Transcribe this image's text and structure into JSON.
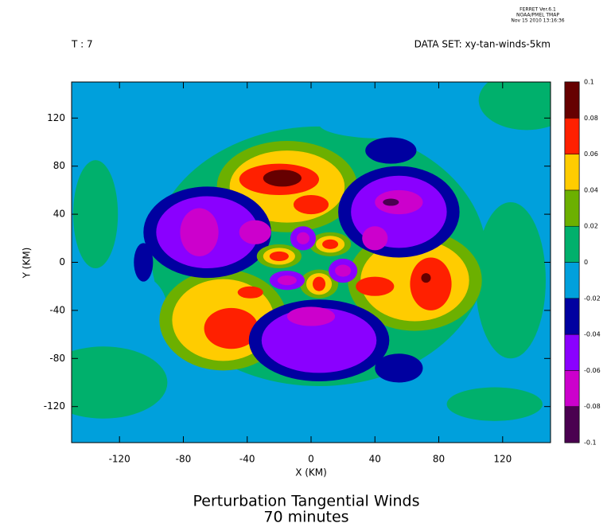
{
  "chart_data": {
    "type": "contour",
    "header": [
      "FERRET Ver.6.1",
      "NOAA/PMEL TMAP",
      "Nov 15 2010 13:16:36"
    ],
    "time_label": "T : 7",
    "dataset_label": "DATA SET: xy-tan-winds-5km",
    "title": "Perturbation Tangential Winds",
    "subtitle": "70 minutes",
    "x_label": "X (KM)",
    "y_label": "Y (KM)",
    "xlim": [
      -150,
      150
    ],
    "ylim": [
      -150,
      150
    ],
    "xticks": [
      -120,
      -80,
      -40,
      0,
      40,
      80,
      120
    ],
    "yticks": [
      -120,
      -80,
      -40,
      0,
      40,
      80,
      120
    ],
    "background_value": -0.01,
    "colorbar": {
      "ticks": [
        -0.1,
        -0.08,
        -0.06,
        -0.04,
        -0.02,
        0,
        0.02,
        0.04,
        0.06,
        0.08,
        0.1
      ],
      "colors": [
        "#4a0050",
        "#cc00cc",
        "#8a00ff",
        "#0000a0",
        "#00a0dc",
        "#00b06c",
        "#6cb000",
        "#ffcc00",
        "#ff2000",
        "#660000"
      ]
    },
    "blobs": [
      {
        "x": 5,
        "y": 5,
        "rx": 105,
        "ry": 108,
        "value": 0.01
      },
      {
        "x": -135,
        "y": 40,
        "rx": 14,
        "ry": 45,
        "value": 0.01
      },
      {
        "x": 125,
        "y": -15,
        "rx": 22,
        "ry": 65,
        "value": 0.01
      },
      {
        "x": 135,
        "y": 135,
        "rx": 30,
        "ry": 25,
        "value": 0.01
      },
      {
        "x": -130,
        "y": -100,
        "rx": 40,
        "ry": 30,
        "value": 0.01
      },
      {
        "x": 115,
        "y": -118,
        "rx": 30,
        "ry": 14,
        "value": 0.01
      },
      {
        "x": 45,
        "y": 115,
        "rx": 40,
        "ry": 12,
        "value": -0.01
      },
      {
        "x": -110,
        "y": -40,
        "rx": 20,
        "ry": 30,
        "value": -0.01
      },
      {
        "x": -105,
        "y": 0,
        "rx": 6,
        "ry": 16,
        "value": -0.03
      },
      {
        "x": 50,
        "y": 93,
        "rx": 16,
        "ry": 11,
        "value": -0.03
      },
      {
        "x": 55,
        "y": -88,
        "rx": 15,
        "ry": 12,
        "value": -0.03
      },
      {
        "x": -15,
        "y": 63,
        "rx": 44,
        "ry": 38,
        "value": 0.03
      },
      {
        "x": -15,
        "y": 63,
        "rx": 36,
        "ry": 30,
        "value": 0.05
      },
      {
        "x": -20,
        "y": 69,
        "rx": 25,
        "ry": 13,
        "value": 0.07
      },
      {
        "x": 0,
        "y": 48,
        "rx": 11,
        "ry": 8,
        "value": 0.07
      },
      {
        "x": -18,
        "y": 70,
        "rx": 12,
        "ry": 7,
        "value": 0.09
      },
      {
        "x": 65,
        "y": -15,
        "rx": 42,
        "ry": 42,
        "value": 0.03
      },
      {
        "x": 65,
        "y": -15,
        "rx": 34,
        "ry": 34,
        "value": 0.05
      },
      {
        "x": 75,
        "y": -18,
        "rx": 13,
        "ry": 22,
        "value": 0.07
      },
      {
        "x": 40,
        "y": -20,
        "rx": 12,
        "ry": 8,
        "value": 0.07
      },
      {
        "x": 72,
        "y": -13,
        "rx": 3,
        "ry": 4,
        "value": 0.09
      },
      {
        "x": -55,
        "y": -48,
        "rx": 40,
        "ry": 42,
        "value": 0.03
      },
      {
        "x": -55,
        "y": -48,
        "rx": 32,
        "ry": 34,
        "value": 0.05
      },
      {
        "x": -50,
        "y": -55,
        "rx": 17,
        "ry": 17,
        "value": 0.07
      },
      {
        "x": -38,
        "y": -25,
        "rx": 8,
        "ry": 5,
        "value": 0.07
      },
      {
        "x": -65,
        "y": 25,
        "rx": 40,
        "ry": 38,
        "value": -0.03
      },
      {
        "x": -65,
        "y": 25,
        "rx": 32,
        "ry": 30,
        "value": -0.05
      },
      {
        "x": -70,
        "y": 25,
        "rx": 12,
        "ry": 20,
        "value": -0.07
      },
      {
        "x": -35,
        "y": 25,
        "rx": 10,
        "ry": 10,
        "value": -0.07
      },
      {
        "x": 55,
        "y": 42,
        "rx": 38,
        "ry": 38,
        "value": -0.03
      },
      {
        "x": 55,
        "y": 42,
        "rx": 30,
        "ry": 30,
        "value": -0.05
      },
      {
        "x": 55,
        "y": 50,
        "rx": 15,
        "ry": 10,
        "value": -0.07
      },
      {
        "x": 40,
        "y": 20,
        "rx": 8,
        "ry": 10,
        "value": -0.07
      },
      {
        "x": 50,
        "y": 50,
        "rx": 5,
        "ry": 3,
        "value": -0.09
      },
      {
        "x": 5,
        "y": -65,
        "rx": 44,
        "ry": 34,
        "value": -0.03
      },
      {
        "x": 5,
        "y": -65,
        "rx": 36,
        "ry": 27,
        "value": -0.05
      },
      {
        "x": 0,
        "y": -45,
        "rx": 15,
        "ry": 8,
        "value": -0.07
      },
      {
        "x": -20,
        "y": 5,
        "rx": 14,
        "ry": 10,
        "value": 0.03
      },
      {
        "x": -20,
        "y": 5,
        "rx": 10,
        "ry": 7,
        "value": 0.05
      },
      {
        "x": -20,
        "y": 5,
        "rx": 6,
        "ry": 4,
        "value": 0.07
      },
      {
        "x": 12,
        "y": 15,
        "rx": 13,
        "ry": 10,
        "value": 0.03
      },
      {
        "x": 12,
        "y": 15,
        "rx": 9,
        "ry": 7,
        "value": 0.05
      },
      {
        "x": 12,
        "y": 15,
        "rx": 5,
        "ry": 4,
        "value": 0.07
      },
      {
        "x": 5,
        "y": -18,
        "rx": 12,
        "ry": 12,
        "value": 0.03
      },
      {
        "x": 5,
        "y": -18,
        "rx": 8,
        "ry": 9,
        "value": 0.05
      },
      {
        "x": 5,
        "y": -18,
        "rx": 4,
        "ry": 6,
        "value": 0.07
      },
      {
        "x": -5,
        "y": 20,
        "rx": 8,
        "ry": 10,
        "value": -0.05
      },
      {
        "x": -5,
        "y": 20,
        "rx": 4,
        "ry": 5,
        "value": -0.07
      },
      {
        "x": 20,
        "y": -7,
        "rx": 9,
        "ry": 10,
        "value": -0.05
      },
      {
        "x": 20,
        "y": -7,
        "rx": 5,
        "ry": 5,
        "value": -0.07
      },
      {
        "x": -15,
        "y": -15,
        "rx": 11,
        "ry": 8,
        "value": -0.05
      },
      {
        "x": -15,
        "y": -15,
        "rx": 6,
        "ry": 4,
        "value": -0.07
      }
    ]
  }
}
